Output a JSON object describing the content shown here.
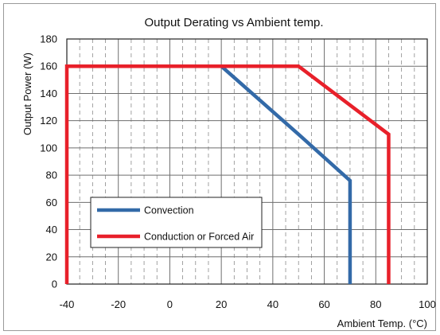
{
  "chart_data": {
    "type": "line",
    "title": "Output Derating vs Ambient temp.",
    "xlabel": "Ambient Temp. (°C)",
    "ylabel": "Output Power (W)",
    "xlim": [
      -40,
      100
    ],
    "ylim": [
      0,
      180
    ],
    "x_ticks": [
      -40,
      -20,
      0,
      20,
      40,
      60,
      80,
      100
    ],
    "y_ticks": [
      0,
      20,
      40,
      60,
      80,
      100,
      120,
      140,
      160,
      180
    ],
    "grid": true,
    "legend_position": "lower-left",
    "series": [
      {
        "name": "Convection",
        "color": "#336aa8",
        "points": [
          [
            20,
            160
          ],
          [
            50,
            110
          ],
          [
            70,
            76
          ],
          [
            70,
            0
          ]
        ]
      },
      {
        "name": "Conduction or Forced Air",
        "color": "#e8202a",
        "points": [
          [
            -40,
            0
          ],
          [
            -40,
            160
          ],
          [
            50,
            160
          ],
          [
            85,
            110
          ],
          [
            85,
            0
          ]
        ]
      }
    ]
  }
}
